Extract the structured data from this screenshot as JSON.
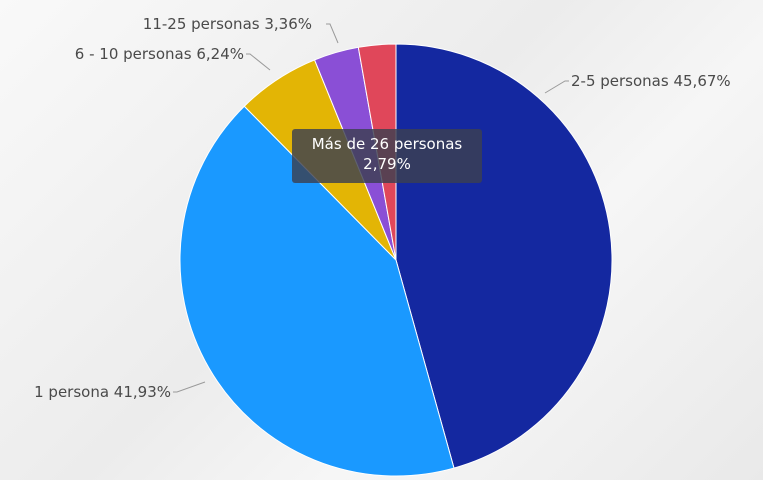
{
  "chart_data": {
    "type": "pie",
    "categories": [
      "2-5 personas",
      "1 persona",
      "6 - 10 personas",
      "11-25 personas",
      "Más de 26 personas"
    ],
    "values": [
      45.67,
      41.93,
      6.24,
      3.36,
      2.79
    ],
    "labels": [
      "2-5 personas 45,67%",
      "1 persona 41,93%",
      "6 - 10 personas 6,24%",
      "11-25 personas 3,36%"
    ],
    "colors": [
      "#1428a0",
      "#1a99ff",
      "#e3b505",
      "#8a4fd6",
      "#e0475a"
    ],
    "start": "top, clockwise"
  },
  "tooltip": {
    "category": "Más de 26 personas",
    "value": "2,79%"
  }
}
